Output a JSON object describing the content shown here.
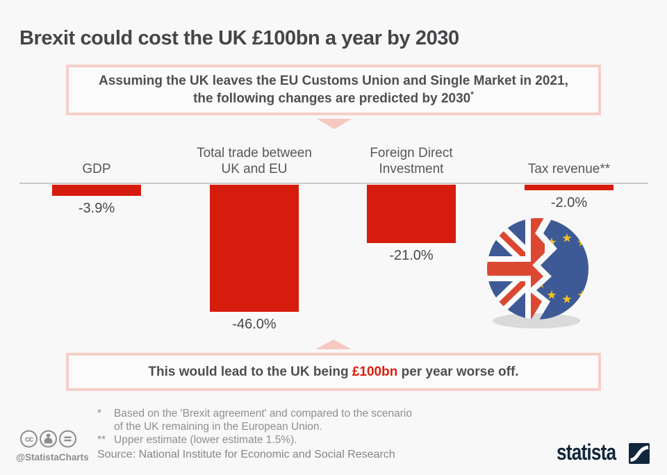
{
  "title": "Brexit could cost the UK £100bn a year by 2030",
  "assumption_box": {
    "line1": "Assuming the UK leaves the EU Customs Union and Single Market in 2021,",
    "line2": "the following changes are predicted by 2030",
    "footnote_marker": "*"
  },
  "chart_data": {
    "type": "bar",
    "orientation": "columns-downward-from-zero",
    "categories": [
      "GDP",
      "Total trade between\nUK and EU",
      "Foreign Direct\nInvestment",
      "Tax revenue**"
    ],
    "values": [
      -3.9,
      -46.0,
      -21.0,
      -2.0
    ],
    "value_labels": [
      "-3.9%",
      "-46.0%",
      "-21.0%",
      "-2.0%"
    ],
    "unit": "%",
    "ylim": [
      -46,
      0
    ],
    "bar_color": "#d61c0c",
    "grid": false,
    "legend": false
  },
  "conclusion_box": {
    "prefix": "This would lead to the UK being ",
    "highlight": "£100bn",
    "suffix": " per year worse off.",
    "highlight_color": "#d6200e"
  },
  "footnotes": [
    {
      "marker": "*",
      "text": "Based on the 'Brexit agreement' and compared to the scenario\nof the UK remaining in the European Union."
    },
    {
      "marker": "**",
      "text": "Upper estimate (lower estimate 1.5%)."
    }
  ],
  "source": "Source: National Institute for Economic and Social Research",
  "footer": {
    "handle": "@StatistaCharts",
    "brand": "statista",
    "license_icons": [
      "cc-icon",
      "attribution-icon",
      "no-derivatives-icon"
    ]
  },
  "colors": {
    "accent_red": "#d61c0c",
    "pink_border": "#f6cfc8",
    "background": "#f8f8f8",
    "brand_navy": "#12263c"
  }
}
